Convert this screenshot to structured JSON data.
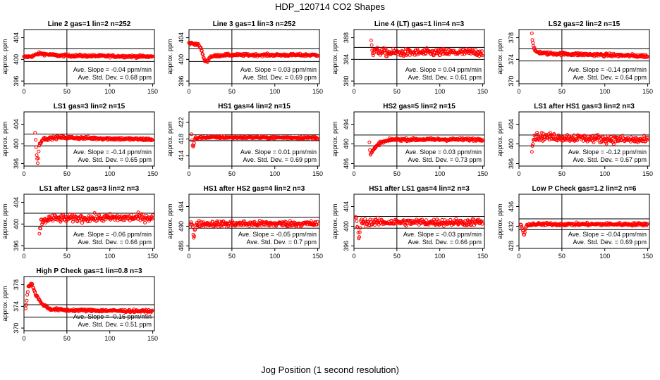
{
  "figure": {
    "title": "HDP_120714  CO2 Shapes",
    "xlabel": "Jog Position (1 second resolution)"
  },
  "chart_data": [
    {
      "type": "scatter",
      "title": "Line 2 gas=1 lin=2 n=252",
      "ylabel": "approx. ppm",
      "xlim": [
        0,
        152
      ],
      "ylim": [
        395.5,
        405.5
      ],
      "yticks": [
        396,
        400,
        404
      ],
      "xticks": [
        0,
        50,
        100,
        150
      ],
      "hlines": [
        402.0,
        399.6
      ],
      "vline": 50,
      "slope_text": "Ave. Slope = -0.04  ppm/min",
      "sd_text": "Ave. Std. Dev. = 0.68  ppm",
      "x_start": 0,
      "x_end": 150,
      "pattern": [
        [
          0,
          400.4
        ],
        [
          10,
          400.6
        ],
        [
          18,
          401.1
        ],
        [
          22,
          401.0
        ],
        [
          40,
          400.7
        ],
        [
          150,
          400.5
        ]
      ],
      "noise": 0.12
    },
    {
      "type": "scatter",
      "title": "Line 3 gas=1 lin=3 n=252",
      "ylabel": "approx. ppm",
      "xlim": [
        0,
        152
      ],
      "ylim": [
        395.5,
        405.5
      ],
      "yticks": [
        396,
        400,
        404
      ],
      "xticks": [
        0,
        50,
        100,
        150
      ],
      "hlines": [
        402.0,
        399.6
      ],
      "vline": 50,
      "slope_text": "Ave. Slope = 0.03  ppm/min",
      "sd_text": "Ave. Std. Dev. = 0.69  ppm",
      "x_start": 0,
      "x_end": 150,
      "pattern": [
        [
          0,
          403.0
        ],
        [
          10,
          402.8
        ],
        [
          14,
          402.0
        ],
        [
          18,
          399.8
        ],
        [
          21,
          399.6
        ],
        [
          25,
          400.5
        ],
        [
          40,
          400.8
        ],
        [
          150,
          400.8
        ]
      ],
      "noise": 0.12
    },
    {
      "type": "scatter",
      "title": "Line 4 (LT) gas=1 lin=4 n=3",
      "ylabel": "approx. ppm",
      "xlim": [
        0,
        152
      ],
      "ylim": [
        379.5,
        389.5
      ],
      "yticks": [
        380,
        384,
        388
      ],
      "xticks": [
        0,
        50,
        100,
        150
      ],
      "hlines": [
        386.2,
        384.0
      ],
      "vline": 50,
      "slope_text": "Ave. Slope = 0.04  ppm/min",
      "sd_text": "Ave. Std. Dev. = 0.61  ppm",
      "x_start": 20,
      "x_end": 150,
      "pattern": [
        [
          20,
          387.8
        ],
        [
          22,
          384.8
        ],
        [
          24,
          385.6
        ],
        [
          40,
          385.2
        ],
        [
          150,
          385.3
        ]
      ],
      "noise": 0.35
    },
    {
      "type": "scatter",
      "title": "LS2 gas=2 lin=2 n=15",
      "ylabel": "approx. ppm",
      "xlim": [
        0,
        152
      ],
      "ylim": [
        369.5,
        379.5
      ],
      "yticks": [
        370,
        374,
        378
      ],
      "xticks": [
        0,
        50,
        100,
        150
      ],
      "hlines": [
        376.0,
        373.7
      ],
      "vline": 50,
      "slope_text": "Ave. Slope = -0.14  ppm/min",
      "sd_text": "Ave. Std. Dev. = 0.64  ppm",
      "x_start": 15,
      "x_end": 150,
      "pattern": [
        [
          15,
          378.6
        ],
        [
          17,
          376.0
        ],
        [
          20,
          375.4
        ],
        [
          30,
          375.1
        ],
        [
          150,
          374.6
        ]
      ],
      "noise": 0.15
    },
    {
      "type": "scatter",
      "title": "LS1 gas=3 lin=2 n=15",
      "ylabel": "approx. ppm",
      "xlim": [
        0,
        152
      ],
      "ylim": [
        395.5,
        406.5
      ],
      "yticks": [
        396,
        400,
        404
      ],
      "xticks": [
        0,
        50,
        100,
        150
      ],
      "hlines": [
        402.0,
        399.6
      ],
      "vline": 50,
      "slope_text": "Ave. Slope = -0.14  ppm/min",
      "sd_text": "Ave. Std. Dev. = 0.65  ppm",
      "x_start": 13,
      "x_end": 150,
      "pattern": [
        [
          13,
          402.2
        ],
        [
          14,
          399.8
        ],
        [
          15,
          397.2
        ],
        [
          16,
          396.2
        ],
        [
          18,
          400.0
        ],
        [
          22,
          401.0
        ],
        [
          40,
          401.3
        ],
        [
          150,
          400.9
        ]
      ],
      "noise": 0.15
    },
    {
      "type": "scatter",
      "title": "HS1 gas=4 lin=2 n=15",
      "ylabel": "approx. ppm",
      "xlim": [
        0,
        152
      ],
      "ylim": [
        411.5,
        424.5
      ],
      "yticks": [
        414,
        418,
        422
      ],
      "xticks": [
        0,
        50,
        100,
        150
      ],
      "hlines": [
        419.0,
        417.6
      ],
      "vline": 50,
      "slope_text": "Ave. Slope = 0.01  ppm/min",
      "sd_text": "Ave. Std. Dev. = 0.69  ppm",
      "x_start": 3,
      "x_end": 150,
      "pattern": [
        [
          3,
          419.0
        ],
        [
          4,
          416.6
        ],
        [
          5,
          415.9
        ],
        [
          7,
          418.2
        ],
        [
          20,
          418.4
        ],
        [
          150,
          418.3
        ]
      ],
      "noise": 0.15
    },
    {
      "type": "scatter",
      "title": "HS2 gas=5 lin=2 n=15",
      "ylabel": "approx. ppm",
      "xlim": [
        0,
        152
      ],
      "ylim": [
        485.5,
        496.5
      ],
      "yticks": [
        486,
        490,
        494
      ],
      "xticks": [
        0,
        50,
        100,
        150
      ],
      "hlines": [
        491.8,
        489.6
      ],
      "vline": 50,
      "slope_text": "Ave. Slope = 0.03  ppm/min",
      "sd_text": "Ave. Std. Dev. = 0.73  ppm",
      "x_start": 18,
      "x_end": 150,
      "pattern": [
        [
          18,
          490.4
        ],
        [
          19,
          487.8
        ],
        [
          22,
          488.6
        ],
        [
          30,
          490.2
        ],
        [
          45,
          490.9
        ],
        [
          150,
          490.9
        ]
      ],
      "noise": 0.15
    },
    {
      "type": "scatter",
      "title": "LS1 after HS1 gas=3 lin=2 n=3",
      "ylabel": "approx. ppm",
      "xlim": [
        0,
        152
      ],
      "ylim": [
        395.5,
        406.5
      ],
      "yticks": [
        396,
        400,
        404
      ],
      "xticks": [
        0,
        50,
        100,
        150
      ],
      "hlines": [
        401.8,
        399.6
      ],
      "vline": 50,
      "slope_text": "Ave. Slope = -0.12  ppm/min",
      "sd_text": "Ave. Std. Dev. = 0.67  ppm",
      "x_start": 15,
      "x_end": 150,
      "pattern": [
        [
          15,
          399.2
        ],
        [
          17,
          401.2
        ],
        [
          20,
          401.5
        ],
        [
          150,
          400.7
        ]
      ],
      "noise": 0.4
    },
    {
      "type": "scatter",
      "title": "LS1 after LS2 gas=3 lin=2 n=3",
      "ylabel": "approx. ppm",
      "xlim": [
        0,
        152
      ],
      "ylim": [
        395.5,
        405.5
      ],
      "yticks": [
        396,
        400,
        404
      ],
      "xticks": [
        0,
        50,
        100,
        150
      ],
      "hlines": [
        402.0,
        399.6
      ],
      "vline": 50,
      "slope_text": "Ave. Slope = -0.06  ppm/min",
      "sd_text": "Ave. Std. Dev. = 0.66  ppm",
      "x_start": 18,
      "x_end": 150,
      "pattern": [
        [
          18,
          398.2
        ],
        [
          20,
          400.4
        ],
        [
          30,
          401.0
        ],
        [
          150,
          401.2
        ]
      ],
      "noise": 0.35
    },
    {
      "type": "scatter",
      "title": "HS1 after HS2 gas=4 lin=2 n=3",
      "ylabel": "approx. ppm",
      "xlim": [
        0,
        152
      ],
      "ylim": [
        485.5,
        496.5
      ],
      "yticks": [
        486,
        490,
        494
      ],
      "xticks": [
        0,
        50,
        100,
        150
      ],
      "hlines": [
        491.8,
        489.6
      ],
      "vline": 50,
      "slope_text": "Ave. Slope = -0.05  ppm/min",
      "sd_text": "Ave. Std. Dev. = 0.7  ppm",
      "x_start": 2,
      "x_end": 150,
      "pattern": [
        [
          2,
          490.6
        ],
        [
          4,
          490.4
        ],
        [
          5,
          487.8
        ],
        [
          6,
          487.9
        ],
        [
          8,
          490.5
        ],
        [
          150,
          490.5
        ]
      ],
      "noise": 0.3
    },
    {
      "type": "scatter",
      "title": "HS1 after LS1 gas=4 lin=2 n=3",
      "ylabel": "approx. ppm",
      "xlim": [
        0,
        152
      ],
      "ylim": [
        395.5,
        406.5
      ],
      "yticks": [
        396,
        400,
        404
      ],
      "xticks": [
        0,
        50,
        100,
        150
      ],
      "hlines": [
        402.0,
        399.6
      ],
      "vline": 50,
      "slope_text": "Ave. Slope = -0.03  ppm/min",
      "sd_text": "Ave. Std. Dev. = 0.66  ppm",
      "x_start": 2,
      "x_end": 150,
      "pattern": [
        [
          2,
          401.8
        ],
        [
          5,
          398.8
        ],
        [
          6,
          397.6
        ],
        [
          8,
          400.8
        ],
        [
          150,
          400.8
        ]
      ],
      "noise": 0.35
    },
    {
      "type": "scatter",
      "title": "Low P Check gas=1.2 lin=2 n=6",
      "ylabel": "approx. ppm",
      "xlim": [
        0,
        152
      ],
      "ylim": [
        427.5,
        438.5
      ],
      "yticks": [
        428,
        432,
        436
      ],
      "xticks": [
        0,
        50,
        100,
        150
      ],
      "hlines": [
        433.5,
        431.3
      ],
      "vline": 50,
      "slope_text": "Ave. Slope = -0.04  ppm/min",
      "sd_text": "Ave. Std. Dev. = 0.69  ppm",
      "x_start": 2,
      "x_end": 150,
      "pattern": [
        [
          2,
          432.4
        ],
        [
          4,
          431.5
        ],
        [
          6,
          430.0
        ],
        [
          8,
          431.8
        ],
        [
          12,
          432.4
        ],
        [
          150,
          432.4
        ]
      ],
      "noise": 0.15
    },
    {
      "type": "scatter",
      "title": "High P Check gas=1 lin=0.8 n=3",
      "ylabel": "approx. ppm",
      "xlim": [
        0,
        152
      ],
      "ylim": [
        369.5,
        379.5
      ],
      "yticks": [
        370,
        374,
        378
      ],
      "xticks": [
        0,
        50,
        100,
        150
      ],
      "hlines": [
        374.3,
        372.0
      ],
      "vline": 50,
      "slope_text": "Ave. Slope = -0.16  ppm/min",
      "sd_text": "Ave. Std. Dev. = 0.51  ppm",
      "x_start": 2,
      "x_end": 150,
      "pattern": [
        [
          2,
          373.6
        ],
        [
          5,
          377.6
        ],
        [
          9,
          378.3
        ],
        [
          13,
          376.4
        ],
        [
          20,
          374.6
        ],
        [
          30,
          373.5
        ],
        [
          50,
          373.3
        ],
        [
          150,
          373.1
        ]
      ],
      "noise": 0.12
    }
  ]
}
